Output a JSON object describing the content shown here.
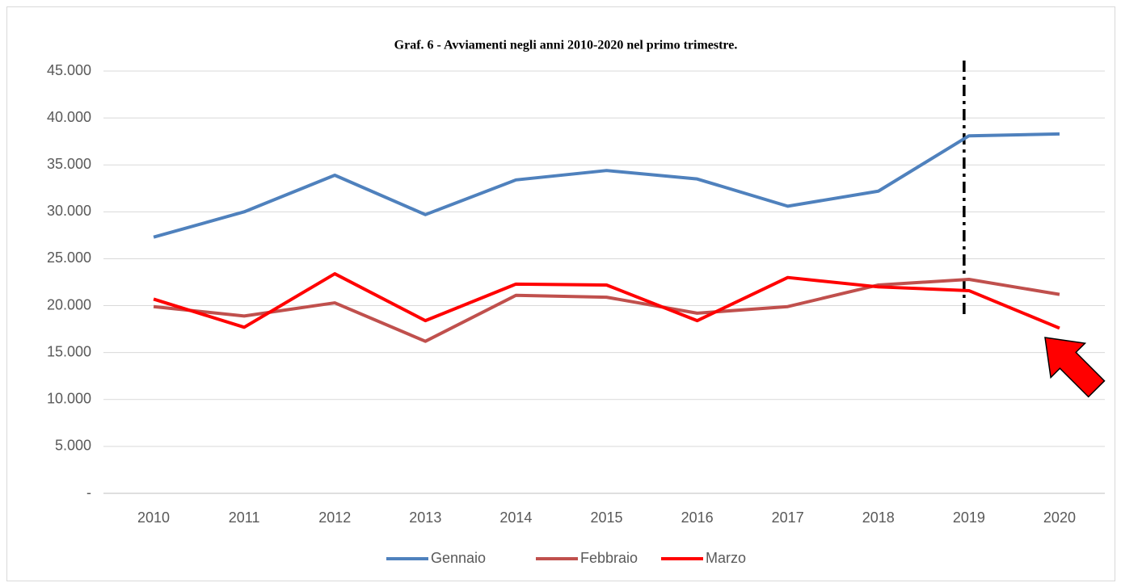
{
  "chart_data": {
    "type": "line",
    "title": "Graf. 6 - Avviamenti negli anni 2010-2020 nel primo trimestre.",
    "categories": [
      "2010",
      "2011",
      "2012",
      "2013",
      "2014",
      "2015",
      "2016",
      "2017",
      "2018",
      "2019",
      "2020"
    ],
    "series": [
      {
        "name": "Gennaio",
        "color": "#4f81bd",
        "values": [
          27300,
          30000,
          33900,
          29700,
          33400,
          34400,
          33500,
          30600,
          32200,
          38100,
          38300
        ]
      },
      {
        "name": "Febbraio",
        "color": "#c0504d",
        "values": [
          19900,
          18900,
          20300,
          16200,
          21100,
          20900,
          19200,
          19900,
          22200,
          22800,
          21200
        ]
      },
      {
        "name": "Marzo",
        "color": "#ff0000",
        "values": [
          20700,
          17700,
          23400,
          18400,
          22300,
          22200,
          18400,
          23000,
          22000,
          21600,
          17600
        ]
      }
    ],
    "ylim": [
      0,
      45000
    ],
    "yticks": [
      {
        "value": 0,
        "label": "-"
      },
      {
        "value": 5000,
        "label": "5.000"
      },
      {
        "value": 10000,
        "label": "10.000"
      },
      {
        "value": 15000,
        "label": "15.000"
      },
      {
        "value": 20000,
        "label": "20.000"
      },
      {
        "value": 25000,
        "label": "25.000"
      },
      {
        "value": 30000,
        "label": "30.000"
      },
      {
        "value": 35000,
        "label": "35.000"
      },
      {
        "value": 40000,
        "label": "40.000"
      },
      {
        "value": 45000,
        "label": "45.000"
      }
    ],
    "grid": true,
    "legend": "bottom"
  }
}
